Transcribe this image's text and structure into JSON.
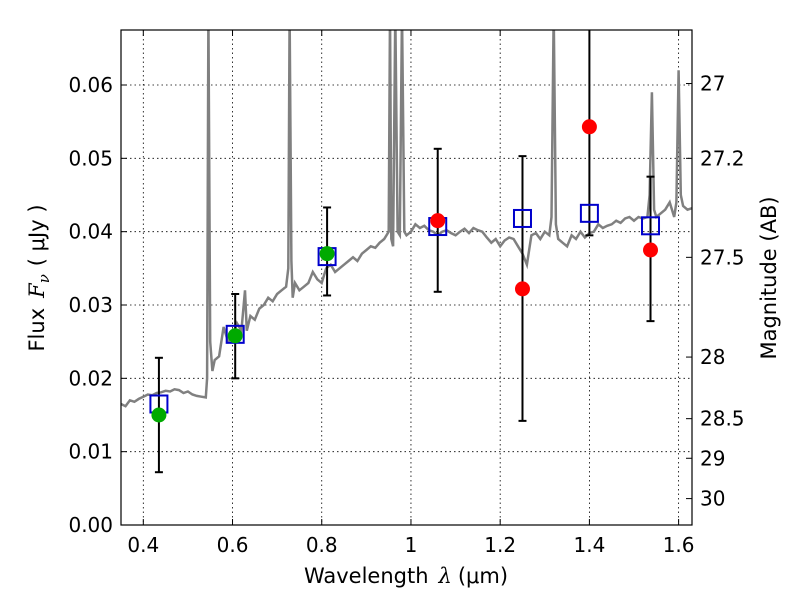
{
  "chart_data": {
    "type": "scatter",
    "title": "",
    "xlabel": {
      "text": "Wavelength",
      "symbol": "λ",
      "unit": "(μm)"
    },
    "ylabel": {
      "text": "Flux",
      "symbol": "F",
      "subscript": "ν",
      "unit": "( μJy )"
    },
    "ylabel_right": "Magnitude (AB)",
    "xlim": [
      0.35,
      1.63
    ],
    "ylim": [
      0.0,
      0.0675
    ],
    "x_ticks": [
      0.4,
      0.6,
      0.8,
      1.0,
      1.2,
      1.4,
      1.6
    ],
    "x_tick_labels": [
      "0.4",
      "0.6",
      "0.8",
      "1",
      "1.2",
      "1.4",
      "1.6"
    ],
    "y_ticks": [
      0.0,
      0.01,
      0.02,
      0.03,
      0.04,
      0.05,
      0.06
    ],
    "y_tick_labels": [
      "0.00",
      "0.01",
      "0.02",
      "0.03",
      "0.04",
      "0.05",
      "0.06"
    ],
    "right_ticks": [
      {
        "label": "27",
        "flux": 0.0602
      },
      {
        "label": "27.2",
        "flux": 0.05
      },
      {
        "label": "27.5",
        "flux": 0.0365
      },
      {
        "label": "28",
        "flux": 0.0229
      },
      {
        "label": "28.5",
        "flux": 0.0145
      },
      {
        "label": "29",
        "flux": 0.0091
      },
      {
        "label": "30",
        "flux": 0.0036
      }
    ],
    "grid": true,
    "colors": {
      "spectrum": "#808080",
      "model": "#0000cc",
      "green": "#00aa00",
      "red": "#ff0000",
      "errorbar": "#000000"
    },
    "spectrum": {
      "x": [
        0.35,
        0.36,
        0.37,
        0.38,
        0.39,
        0.4,
        0.41,
        0.42,
        0.43,
        0.44,
        0.45,
        0.46,
        0.47,
        0.48,
        0.49,
        0.5,
        0.51,
        0.52,
        0.53,
        0.54,
        0.543,
        0.546,
        0.55,
        0.555,
        0.56,
        0.57,
        0.58,
        0.59,
        0.6,
        0.61,
        0.62,
        0.625,
        0.628,
        0.632,
        0.64,
        0.65,
        0.66,
        0.67,
        0.68,
        0.69,
        0.7,
        0.71,
        0.72,
        0.725,
        0.728,
        0.732,
        0.735,
        0.74,
        0.75,
        0.76,
        0.77,
        0.78,
        0.79,
        0.8,
        0.81,
        0.82,
        0.83,
        0.84,
        0.85,
        0.86,
        0.87,
        0.88,
        0.89,
        0.9,
        0.91,
        0.92,
        0.93,
        0.94,
        0.95,
        0.953,
        0.956,
        0.96,
        0.965,
        0.97,
        0.975,
        0.98,
        0.985,
        0.99,
        1.0,
        1.01,
        1.02,
        1.03,
        1.04,
        1.05,
        1.06,
        1.07,
        1.08,
        1.09,
        1.1,
        1.11,
        1.12,
        1.13,
        1.14,
        1.15,
        1.16,
        1.17,
        1.18,
        1.19,
        1.2,
        1.21,
        1.22,
        1.23,
        1.24,
        1.25,
        1.26,
        1.27,
        1.28,
        1.29,
        1.3,
        1.31,
        1.315,
        1.32,
        1.325,
        1.33,
        1.34,
        1.35,
        1.36,
        1.37,
        1.38,
        1.39,
        1.4,
        1.41,
        1.42,
        1.43,
        1.44,
        1.45,
        1.46,
        1.47,
        1.48,
        1.49,
        1.5,
        1.51,
        1.52,
        1.53,
        1.535,
        1.54,
        1.545,
        1.55,
        1.56,
        1.57,
        1.58,
        1.59,
        1.595,
        1.6,
        1.605,
        1.61,
        1.62,
        1.63
      ],
      "y": [
        0.0165,
        0.0162,
        0.017,
        0.0168,
        0.0172,
        0.0175,
        0.0178,
        0.0177,
        0.018,
        0.0181,
        0.0183,
        0.0182,
        0.0185,
        0.0184,
        0.018,
        0.0182,
        0.0178,
        0.0176,
        0.0175,
        0.0174,
        0.02,
        0.07,
        0.025,
        0.021,
        0.0225,
        0.023,
        0.027,
        0.025,
        0.0255,
        0.0275,
        0.0265,
        0.03,
        0.032,
        0.0265,
        0.0285,
        0.028,
        0.0295,
        0.03,
        0.031,
        0.0305,
        0.0315,
        0.032,
        0.0325,
        0.035,
        0.07,
        0.036,
        0.031,
        0.033,
        0.032,
        0.0325,
        0.033,
        0.0345,
        0.0335,
        0.033,
        0.035,
        0.0355,
        0.0345,
        0.035,
        0.0355,
        0.036,
        0.0365,
        0.036,
        0.037,
        0.0375,
        0.038,
        0.0378,
        0.0385,
        0.039,
        0.04,
        0.07,
        0.039,
        0.038,
        0.07,
        0.04,
        0.0395,
        0.07,
        0.04,
        0.0395,
        0.04,
        0.041,
        0.0405,
        0.0408,
        0.0402,
        0.04,
        0.0395,
        0.04,
        0.0402,
        0.0398,
        0.0395,
        0.04,
        0.0404,
        0.0398,
        0.0405,
        0.0402,
        0.04,
        0.0392,
        0.0385,
        0.039,
        0.038,
        0.0388,
        0.0392,
        0.039,
        0.038,
        0.037,
        0.0355,
        0.0395,
        0.0398,
        0.039,
        0.04,
        0.0395,
        0.042,
        0.07,
        0.041,
        0.039,
        0.0385,
        0.038,
        0.0395,
        0.039,
        0.04,
        0.0392,
        0.0398,
        0.04,
        0.041,
        0.0405,
        0.0408,
        0.041,
        0.0415,
        0.0412,
        0.0418,
        0.042,
        0.0415,
        0.042,
        0.0418,
        0.042,
        0.045,
        0.059,
        0.043,
        0.042,
        0.0425,
        0.043,
        0.044,
        0.042,
        0.044,
        0.062,
        0.045,
        0.0435,
        0.043,
        0.0432
      ]
    },
    "points": [
      {
        "x": 0.435,
        "model": 0.0165,
        "obs": 0.015,
        "err_low": 0.0072,
        "err_high": 0.0228,
        "color": "green"
      },
      {
        "x": 0.606,
        "model": 0.026,
        "obs": 0.0258,
        "err_low": 0.02,
        "err_high": 0.0315,
        "color": "green"
      },
      {
        "x": 0.812,
        "model": 0.0366,
        "obs": 0.037,
        "err_low": 0.0313,
        "err_high": 0.0433,
        "color": "green"
      },
      {
        "x": 1.06,
        "model": 0.0407,
        "obs": 0.0415,
        "err_low": 0.0318,
        "err_high": 0.0513,
        "color": "red"
      },
      {
        "x": 1.25,
        "model": 0.0418,
        "obs": 0.0322,
        "err_low": 0.0142,
        "err_high": 0.0503,
        "color": "red"
      },
      {
        "x": 1.4,
        "model": 0.0425,
        "obs": 0.0543,
        "err_low": 0.0395,
        "err_high": 0.07,
        "color": "red"
      },
      {
        "x": 1.537,
        "model": 0.0408,
        "obs": 0.0375,
        "err_low": 0.0278,
        "err_high": 0.0475,
        "color": "red"
      }
    ]
  }
}
